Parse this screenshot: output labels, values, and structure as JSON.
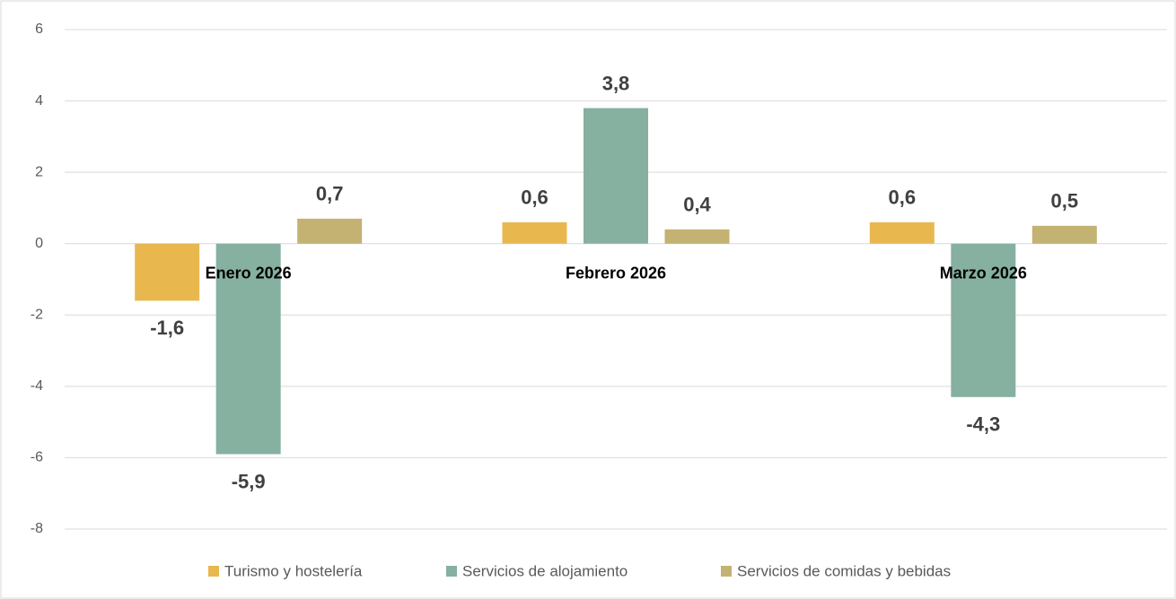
{
  "chart_data": {
    "type": "bar",
    "categories": [
      "Enero 2026",
      "Febrero 2026",
      "Marzo 2026"
    ],
    "series": [
      {
        "name": "Turismo y hostelería",
        "color": "#e8b84f",
        "values": [
          -1.6,
          0.6,
          0.6
        ],
        "value_labels": [
          "-1,6",
          "0,6",
          "0,6"
        ]
      },
      {
        "name": "Servicios de alojamiento",
        "color": "#86b0a0",
        "values": [
          -5.9,
          3.8,
          -4.3
        ],
        "value_labels": [
          "-5,9",
          "3,8",
          "-4,3"
        ]
      },
      {
        "name": "Servicios de comidas y bebidas",
        "color": "#c4b272",
        "values": [
          0.7,
          0.4,
          0.5
        ],
        "value_labels": [
          "0,7",
          "0,4",
          "0,5"
        ]
      }
    ],
    "ylim": [
      -8,
      6
    ],
    "yticks": [
      -8,
      -6,
      -4,
      -2,
      0,
      2,
      4,
      6
    ],
    "grid": true,
    "legend": "bottom"
  }
}
